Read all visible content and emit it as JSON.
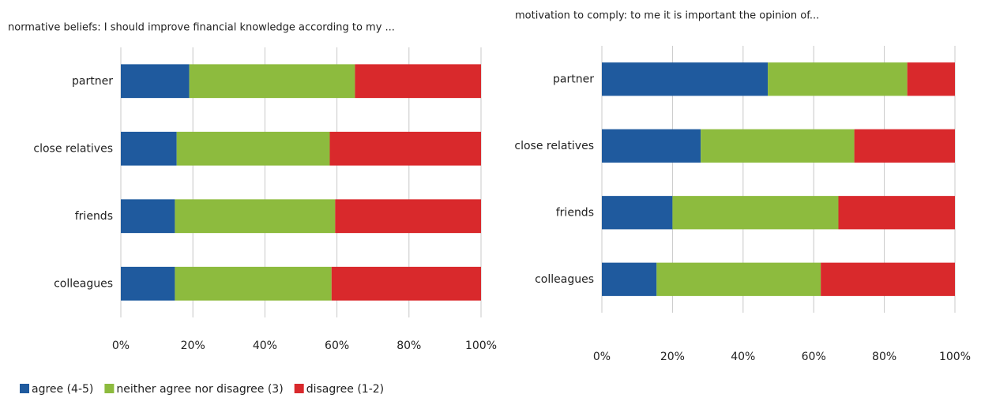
{
  "chart_data": [
    {
      "type": "bar",
      "orientation": "horizontal",
      "stacked": true,
      "title": "normative beliefs: I should improve financial knowledge according to my ...",
      "categories": [
        "partner",
        "close relatives",
        "friends",
        "colleagues"
      ],
      "series": [
        {
          "name": "agree (4-5)",
          "color": "#1f5a9e",
          "values": [
            19,
            15.5,
            15,
            15
          ]
        },
        {
          "name": "neither agree nor disagree (3)",
          "color": "#8dbb3e",
          "values": [
            46,
            42.5,
            44.5,
            43.5
          ]
        },
        {
          "name": "disagree (1-2)",
          "color": "#d9292c",
          "values": [
            35,
            42,
            40.5,
            41.5
          ]
        }
      ],
      "xlim": [
        0,
        100
      ],
      "xticks": [
        {
          "value": 0,
          "label": "0%"
        },
        {
          "value": 20,
          "label": "20%"
        },
        {
          "value": 40,
          "label": "40%"
        },
        {
          "value": 60,
          "label": "60%"
        },
        {
          "value": 80,
          "label": "80%"
        },
        {
          "value": 100,
          "label": "100%"
        }
      ],
      "grid": true,
      "legend": "bottom-left"
    },
    {
      "type": "bar",
      "orientation": "horizontal",
      "stacked": true,
      "title": "motivation to comply: to me it is important the opinion of...",
      "categories": [
        "partner",
        "close relatives",
        "friends",
        "colleagues"
      ],
      "series": [
        {
          "name": "agree (4-5)",
          "color": "#1f5a9e",
          "values": [
            47,
            28,
            20,
            15.5
          ]
        },
        {
          "name": "neither agree nor disagree (3)",
          "color": "#8dbb3e",
          "values": [
            39.5,
            43.5,
            47,
            46.5
          ]
        },
        {
          "name": "disagree (1-2)",
          "color": "#d9292c",
          "values": [
            13.5,
            28.5,
            33,
            38
          ]
        }
      ],
      "xlim": [
        0,
        100
      ],
      "xticks": [
        {
          "value": 0,
          "label": "0%"
        },
        {
          "value": 20,
          "label": "20%"
        },
        {
          "value": 40,
          "label": "40%"
        },
        {
          "value": 60,
          "label": "60%"
        },
        {
          "value": 80,
          "label": "80%"
        },
        {
          "value": 100,
          "label": "100%"
        }
      ],
      "grid": true
    }
  ]
}
